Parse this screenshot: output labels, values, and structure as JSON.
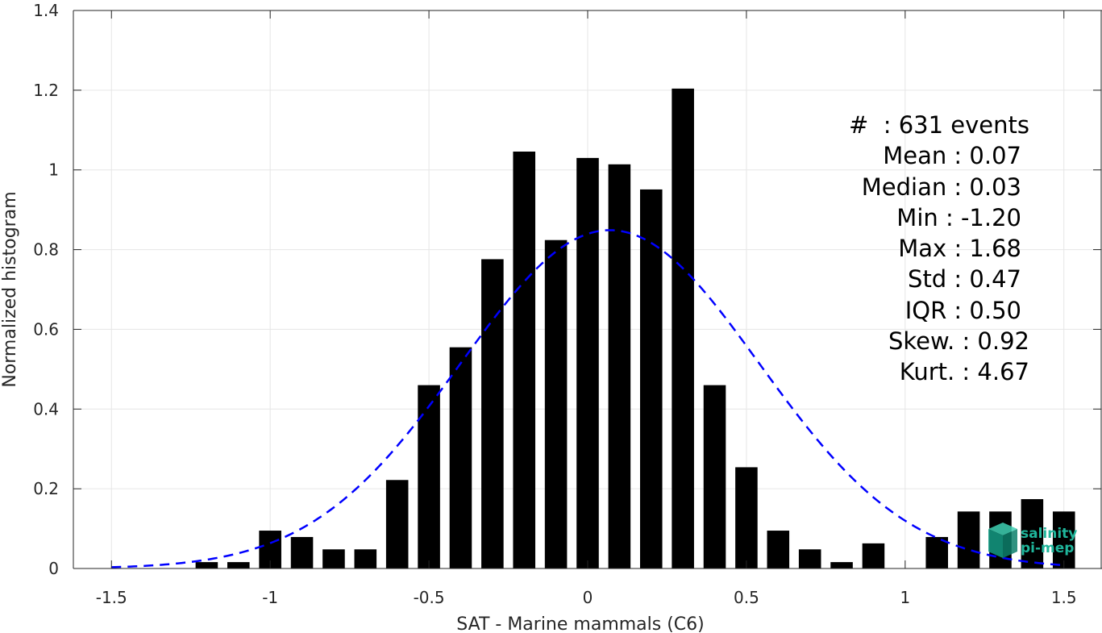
{
  "chart_data": {
    "type": "bar",
    "xlabel": "SAT - Marine mammals (C6)",
    "ylabel": "Normalized histogram",
    "xlim": [
      -1.62,
      1.62
    ],
    "ylim": [
      0,
      1.4
    ],
    "grid": true,
    "x_ticks": [
      -1.5,
      -1,
      -0.5,
      0,
      0.5,
      1,
      1.5
    ],
    "x_tick_labels": [
      "-1.5",
      "-1",
      "-0.5",
      "0",
      "0.5",
      "1",
      "1.5"
    ],
    "y_ticks": [
      0,
      0.2,
      0.4,
      0.6,
      0.8,
      1,
      1.2,
      1.4
    ],
    "y_tick_labels": [
      "0",
      "0.2",
      "0.4",
      "0.6",
      "0.8",
      "1",
      "1.2",
      "1.4"
    ],
    "bar_width": 0.07,
    "bins": [
      {
        "x": -1.2,
        "value": 0.016
      },
      {
        "x": -1.1,
        "value": 0.016
      },
      {
        "x": -1.0,
        "value": 0.095
      },
      {
        "x": -0.9,
        "value": 0.079
      },
      {
        "x": -0.8,
        "value": 0.048
      },
      {
        "x": -0.7,
        "value": 0.048
      },
      {
        "x": -0.6,
        "value": 0.222
      },
      {
        "x": -0.5,
        "value": 0.46
      },
      {
        "x": -0.4,
        "value": 0.555
      },
      {
        "x": -0.3,
        "value": 0.776
      },
      {
        "x": -0.2,
        "value": 1.046
      },
      {
        "x": -0.1,
        "value": 0.824
      },
      {
        "x": 0.0,
        "value": 1.03
      },
      {
        "x": 0.1,
        "value": 1.014
      },
      {
        "x": 0.2,
        "value": 0.951
      },
      {
        "x": 0.3,
        "value": 1.204
      },
      {
        "x": 0.4,
        "value": 0.46
      },
      {
        "x": 0.5,
        "value": 0.254
      },
      {
        "x": 0.6,
        "value": 0.095
      },
      {
        "x": 0.7,
        "value": 0.048
      },
      {
        "x": 0.8,
        "value": 0.016
      },
      {
        "x": 0.9,
        "value": 0.063
      },
      {
        "x": 1.1,
        "value": 0.079
      },
      {
        "x": 1.2,
        "value": 0.143
      },
      {
        "x": 1.3,
        "value": 0.143
      },
      {
        "x": 1.4,
        "value": 0.174
      },
      {
        "x": 1.5,
        "value": 0.143
      }
    ],
    "fit": {
      "type": "gaussian",
      "mean": 0.07,
      "std": 0.47,
      "xmin": -1.5,
      "xmax": 1.5,
      "color": "#0000ff",
      "style": "dashed"
    },
    "bar_color": "#000000"
  },
  "stats": [
    {
      "label": "#  : 631 events"
    },
    {
      "label": "Mean : 0.07"
    },
    {
      "label": "Median : 0.03"
    },
    {
      "label": "Min : -1.20"
    },
    {
      "label": "Max : 1.68"
    },
    {
      "label": "Std : 0.47"
    },
    {
      "label": "IQR : 0.50"
    },
    {
      "label": "Skew. : 0.92"
    },
    {
      "label": "Kurt. : 4.67"
    }
  ],
  "logo": {
    "line1": "salinity",
    "line2": "pi-mep",
    "color": "#1fb59b"
  }
}
